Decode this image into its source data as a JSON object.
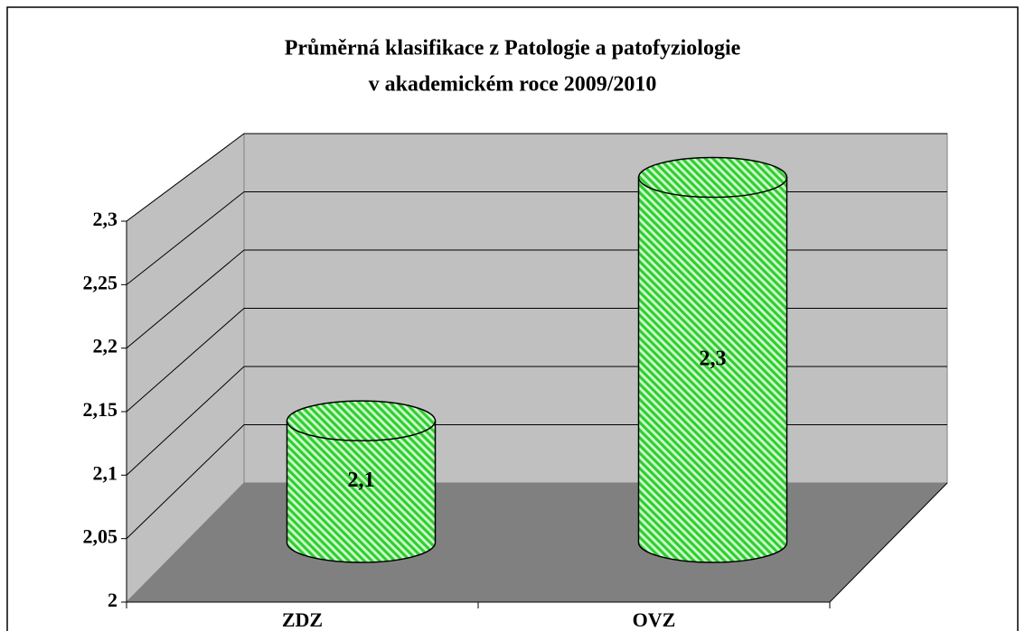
{
  "chart_data": {
    "type": "bar3d",
    "title": "Průměrná klasifikace z Patologie a patofyziologie",
    "subtitle": "v akademickém roce 2009/2010",
    "categories": [
      "ZDZ",
      "OVZ"
    ],
    "values": [
      2.1,
      2.3
    ],
    "value_labels": [
      "2,1",
      "2,3"
    ],
    "color": "#33cc33",
    "ylim": [
      2,
      2.3
    ],
    "yticks": [
      {
        "value": 2,
        "label": "2"
      },
      {
        "value": 2.05,
        "label": "2,05"
      },
      {
        "value": 2.1,
        "label": "2,1"
      },
      {
        "value": 2.15,
        "label": "2,15"
      },
      {
        "value": 2.2,
        "label": "2,2"
      },
      {
        "value": 2.25,
        "label": "2,25"
      },
      {
        "value": 2.3,
        "label": "2,3"
      }
    ],
    "grid": true
  }
}
